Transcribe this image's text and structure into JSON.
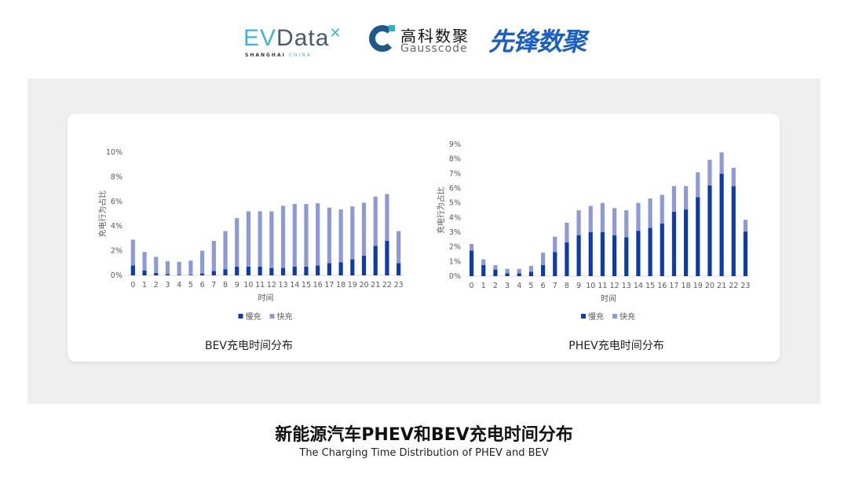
{
  "logos": {
    "evdata": {
      "text_ev": "EV",
      "text_data": "Data",
      "sub": "SHANGHAI",
      "sub2": "CHINA"
    },
    "gausscode": {
      "cn": "高科数聚",
      "en": "Gausscode"
    },
    "xianfeng": {
      "cn": "先锋数聚"
    }
  },
  "colors": {
    "slow": "#0d3ca8",
    "fast": "#8e9ad6",
    "panel": "#efefef"
  },
  "title": "新能源汽车PHEV和BEV充电时间分布",
  "subtitle": "The Charging Time Distribution of PHEV and BEV",
  "chart_data": [
    {
      "type": "bar",
      "stacked": true,
      "title": "BEV充电时间分布",
      "xlabel": "时间",
      "ylabel": "充电行为占比",
      "categories": [
        "0",
        "1",
        "2",
        "3",
        "4",
        "5",
        "6",
        "7",
        "8",
        "9",
        "10",
        "11",
        "12",
        "13",
        "14",
        "15",
        "16",
        "17",
        "18",
        "19",
        "20",
        "21",
        "22",
        "23"
      ],
      "yticks": [
        "0%",
        "2%",
        "4%",
        "6%",
        "8%",
        "10%"
      ],
      "ylim": [
        0,
        10
      ],
      "legend": "bottom",
      "grid": false,
      "series": [
        {
          "name": "慢充",
          "values": [
            0.8,
            0.4,
            0.2,
            0.1,
            0.05,
            0.05,
            0.15,
            0.35,
            0.5,
            0.7,
            0.7,
            0.7,
            0.6,
            0.6,
            0.7,
            0.7,
            0.8,
            1.0,
            1.05,
            1.3,
            1.6,
            2.4,
            2.8,
            1.0
          ]
        },
        {
          "name": "快充",
          "values": [
            2.1,
            1.5,
            1.3,
            1.05,
            1.05,
            1.15,
            1.85,
            2.45,
            3.1,
            3.95,
            4.5,
            4.5,
            4.6,
            5.05,
            5.1,
            5.1,
            5.05,
            4.5,
            4.3,
            4.3,
            4.3,
            4.0,
            3.8,
            2.6
          ]
        }
      ]
    },
    {
      "type": "bar",
      "stacked": true,
      "title": "PHEV充电时间分布",
      "xlabel": "时间",
      "ylabel": "充电行为占比",
      "categories": [
        "0",
        "1",
        "2",
        "3",
        "4",
        "5",
        "6",
        "7",
        "8",
        "9",
        "10",
        "11",
        "12",
        "13",
        "14",
        "15",
        "16",
        "17",
        "18",
        "19",
        "20",
        "21",
        "22",
        "23"
      ],
      "yticks": [
        "0%",
        "1%",
        "2%",
        "3%",
        "4%",
        "5%",
        "6%",
        "7%",
        "8%",
        "9%"
      ],
      "ylim": [
        0,
        9
      ],
      "legend": "bottom",
      "grid": false,
      "series": [
        {
          "name": "慢充",
          "values": [
            1.75,
            0.75,
            0.45,
            0.2,
            0.2,
            0.3,
            0.75,
            1.65,
            2.3,
            2.8,
            3.0,
            3.0,
            2.8,
            2.65,
            3.1,
            3.3,
            3.6,
            4.4,
            4.55,
            5.4,
            6.2,
            7.0,
            6.15,
            3.05
          ]
        },
        {
          "name": "快充",
          "values": [
            0.45,
            0.4,
            0.3,
            0.3,
            0.3,
            0.4,
            0.85,
            1.05,
            1.35,
            1.7,
            1.8,
            2.0,
            1.85,
            1.85,
            1.9,
            2.0,
            1.95,
            1.75,
            1.6,
            1.7,
            1.75,
            1.45,
            1.25,
            0.8
          ]
        }
      ]
    }
  ]
}
